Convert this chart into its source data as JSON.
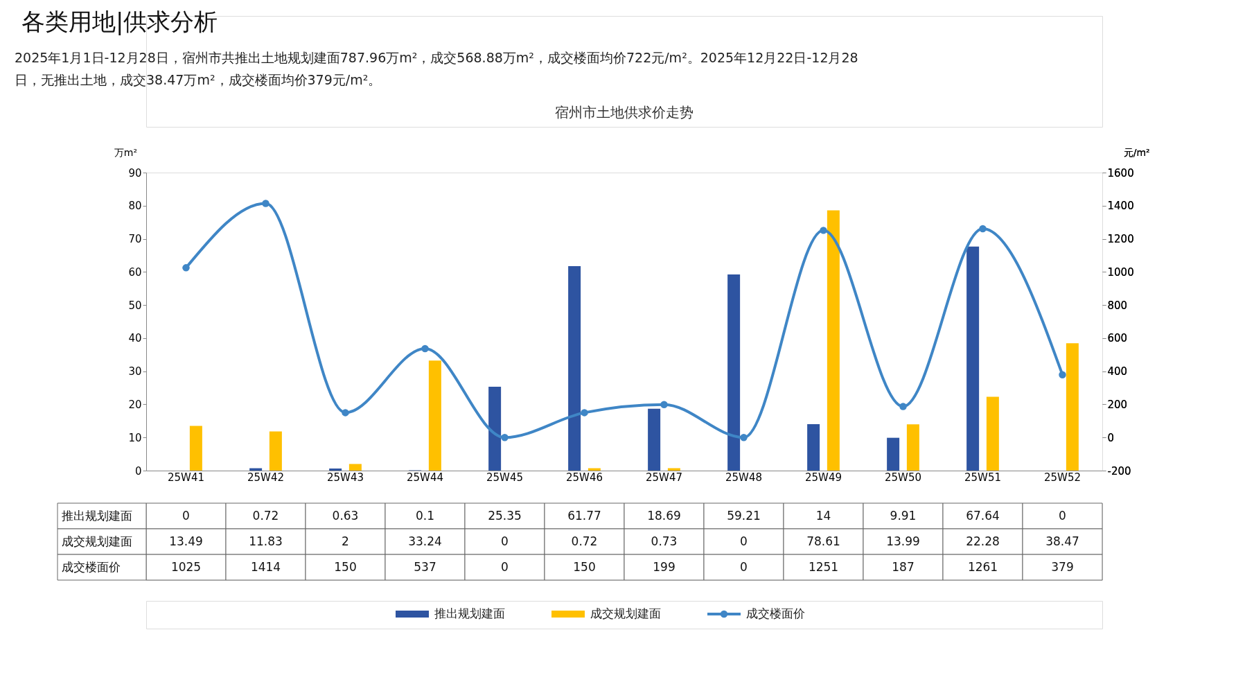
{
  "chart_data": {
    "type": "bar",
    "title": "宿州市土地供求价走势",
    "annotations": [
      "各类用地|供求分析",
      "2025年1月1日-12月28日，宿州市共推出土地规划建面787.96万m²，成交568.88万m²，成交楼面均价722元/m²。2025年12月22日-12月28日，无推出土地，成交38.47万m²，成交楼面均价379元/m²。"
    ],
    "ylabel": "万m²",
    "y2label": "元/m²",
    "categories": [
      "25W41",
      "25W42",
      "25W43",
      "25W44",
      "25W45",
      "25W46",
      "25W47",
      "25W48",
      "25W49",
      "25W50",
      "25W51",
      "25W52"
    ],
    "series": [
      {
        "name": "推出规划建面",
        "color": "#2e54a1",
        "values": [
          0,
          0.72,
          0.63,
          0.1,
          25.35,
          61.77,
          18.69,
          59.21,
          14,
          9.91,
          67.64,
          0
        ]
      },
      {
        "name": "成交规划建面",
        "color": "#ffc000",
        "values": [
          13.49,
          11.83,
          2,
          33.24,
          0,
          0.72,
          0.73,
          0,
          78.61,
          13.99,
          22.28,
          38.47
        ]
      },
      {
        "name": "成交楼面价",
        "type": "line",
        "axis": "y2",
        "color": "#3f86c6",
        "marker": "circle",
        "values": [
          1025,
          1414,
          150,
          537,
          0,
          150,
          199,
          0,
          1251,
          187,
          1261,
          379
        ]
      }
    ],
    "ylim": [
      0,
      90
    ],
    "yticks": [
      0,
      10,
      20,
      30,
      40,
      50,
      60,
      70,
      80,
      90
    ],
    "y2lim": [
      -200,
      1600
    ],
    "y2ticks": [
      -200,
      0,
      200,
      400,
      600,
      800,
      1000,
      1200,
      1400,
      1600
    ],
    "data_labels": true,
    "legend": "bottom"
  }
}
